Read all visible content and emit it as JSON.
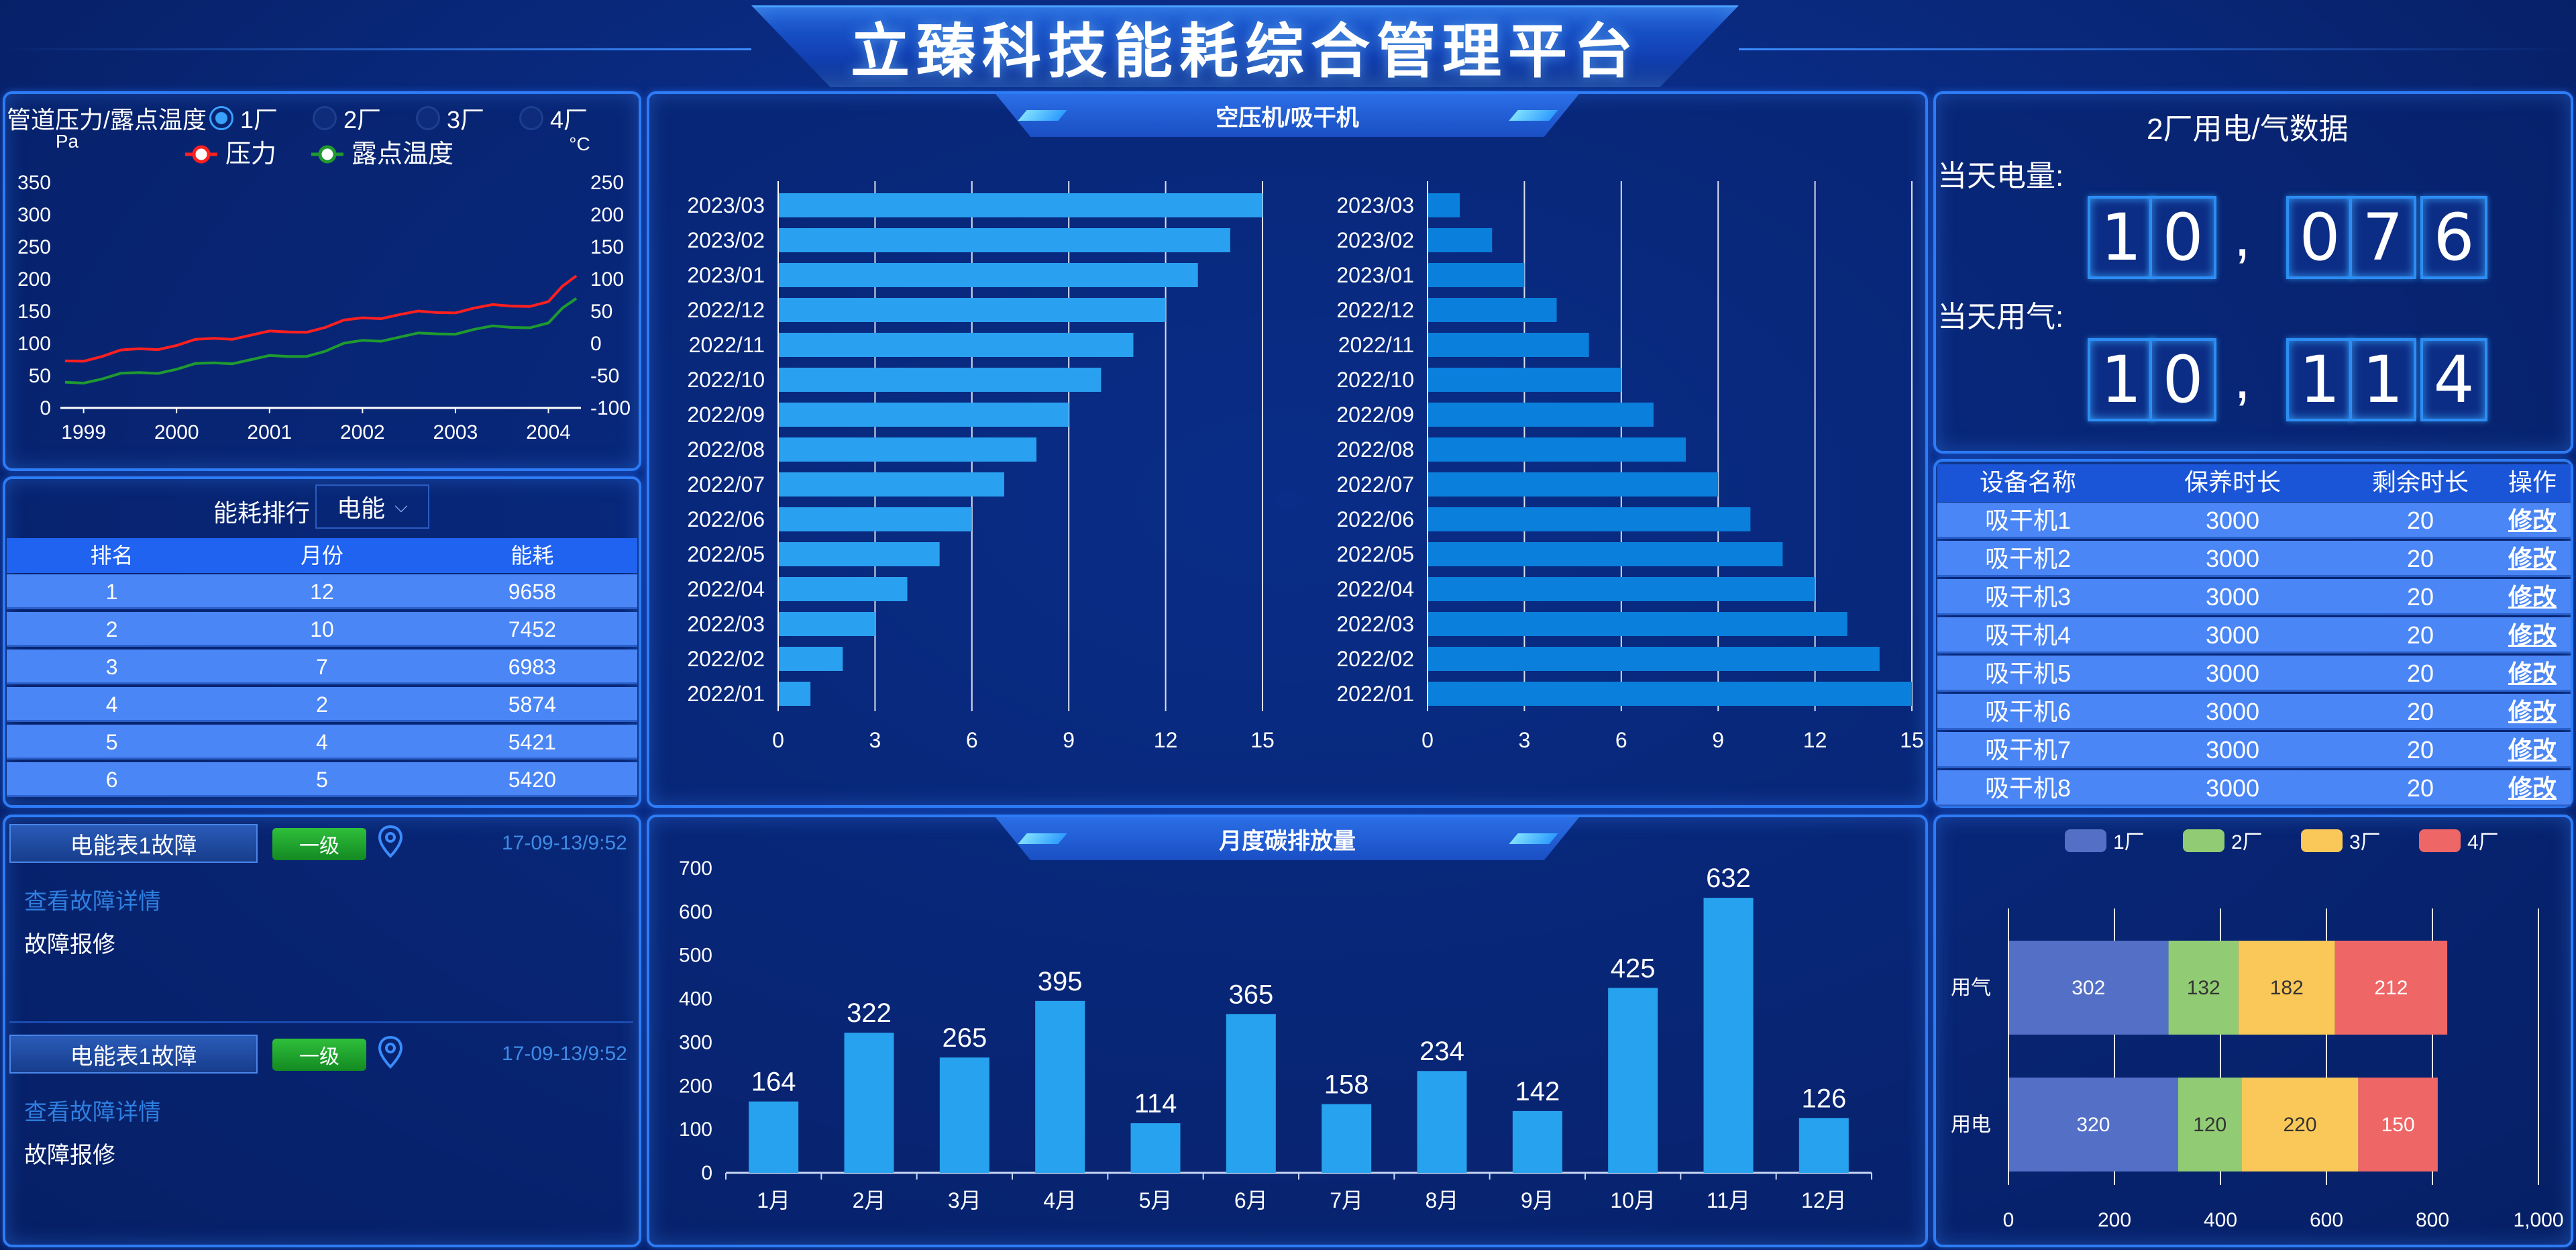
{
  "header": {
    "title": "立臻科技能耗综合管理平台"
  },
  "pressure_panel": {
    "title": "管道压力/露点温度",
    "factories": [
      "1厂",
      "2厂",
      "3厂",
      "4厂"
    ],
    "selected_factory": "1厂",
    "left_unit": "Pa",
    "right_unit": "°C",
    "legend": [
      "压力",
      "露点温度"
    ],
    "colors": {
      "pressure": "#ff2020",
      "dew": "#1f9a30"
    }
  },
  "ranking": {
    "label": "能耗排行",
    "select_value": "电能",
    "columns": [
      "排名",
      "月份",
      "能耗"
    ],
    "rows": [
      [
        "1",
        "12",
        "9658"
      ],
      [
        "2",
        "10",
        "7452"
      ],
      [
        "3",
        "7",
        "6983"
      ],
      [
        "4",
        "2",
        "5874"
      ],
      [
        "5",
        "4",
        "5421"
      ],
      [
        "6",
        "5",
        "5420"
      ]
    ]
  },
  "alarms": [
    {
      "name": "电能表1故障",
      "level": "一级",
      "time": "17-09-13/9:52",
      "detail_link": "查看故障详情",
      "repair": "故障报修"
    },
    {
      "name": "电能表1故障",
      "level": "一级",
      "time": "17-09-13/9:52",
      "detail_link": "查看故障详情",
      "repair": "故障报修"
    }
  ],
  "compressor_panel": {
    "title": "空压机/吸干机"
  },
  "carbon_panel": {
    "title": "月度碳排放量"
  },
  "usage_panel": {
    "title": "2厂用电/气数据",
    "power_label": "当天电量:",
    "gas_label": "当天用气:",
    "power_digits": [
      "1",
      "0",
      ",",
      "0",
      "7",
      "6"
    ],
    "gas_digits": [
      "1",
      "0",
      ",",
      "1",
      "1",
      "4"
    ]
  },
  "maintenance": {
    "columns": [
      "设备名称",
      "保养时长",
      "剩余时长",
      "操作"
    ],
    "rows": [
      [
        "吸干机1",
        "3000",
        "20",
        "修改"
      ],
      [
        "吸干机2",
        "3000",
        "20",
        "修改"
      ],
      [
        "吸干机3",
        "3000",
        "20",
        "修改"
      ],
      [
        "吸干机4",
        "3000",
        "20",
        "修改"
      ],
      [
        "吸干机5",
        "3000",
        "20",
        "修改"
      ],
      [
        "吸干机6",
        "3000",
        "20",
        "修改"
      ],
      [
        "吸干机7",
        "3000",
        "20",
        "修改"
      ],
      [
        "吸干机8",
        "3000",
        "20",
        "修改"
      ]
    ]
  },
  "chart_data": [
    {
      "type": "line",
      "title": "管道压力/露点温度",
      "x_ticks": [
        "1999",
        "2000",
        "2001",
        "2002",
        "2003",
        "2004"
      ],
      "left_axis": {
        "unit": "Pa",
        "ticks": [
          0,
          50,
          100,
          150,
          200,
          250,
          300,
          350
        ],
        "ylim": [
          0,
          350
        ]
      },
      "right_axis": {
        "unit": "°C",
        "ticks": [
          -100,
          -50,
          0,
          50,
          100,
          150,
          200,
          250
        ],
        "ylim": [
          -100,
          250
        ]
      },
      "series": [
        {
          "name": "压力",
          "axis": "left",
          "color": "#ff2020",
          "x": [
            1998.8,
            1999.2,
            1999.6,
            2000.0,
            2000.4,
            2000.8,
            2001.2,
            2001.6,
            2002.0,
            2002.4,
            2002.8,
            2003.2,
            2003.6,
            2004.0,
            2004.3
          ],
          "values": [
            73,
            80,
            92,
            97,
            108,
            113,
            118,
            125,
            140,
            145,
            148,
            155,
            158,
            165,
            205
          ]
        },
        {
          "name": "露点温度",
          "axis": "right",
          "color": "#1f9a30",
          "x": [
            1998.8,
            1999.2,
            1999.6,
            2000.0,
            2000.4,
            2000.8,
            2001.2,
            2001.6,
            2002.0,
            2002.4,
            2002.8,
            2003.2,
            2003.6,
            2004.0,
            2004.3
          ],
          "values": [
            -60,
            -55,
            -45,
            -40,
            -30,
            -25,
            -20,
            -12,
            5,
            10,
            15,
            22,
            25,
            32,
            70
          ]
        }
      ]
    },
    {
      "type": "bar",
      "orientation": "horizontal",
      "categories": [
        "2023/03",
        "2023/02",
        "2023/01",
        "2022/12",
        "2022/11",
        "2022/10",
        "2022/09",
        "2022/08",
        "2022/07",
        "2022/06",
        "2022/05",
        "2022/04",
        "2022/03",
        "2022/02",
        "2022/01"
      ],
      "values": [
        15,
        14,
        13,
        12,
        11,
        10,
        9,
        8,
        7,
        6,
        5,
        4,
        3,
        2,
        1
      ],
      "xlim": [
        0,
        15
      ],
      "ticks": [
        0,
        3,
        6,
        9,
        12,
        15
      ],
      "color": "#2aa0f0"
    },
    {
      "type": "bar",
      "orientation": "horizontal",
      "categories": [
        "2023/03",
        "2023/02",
        "2023/01",
        "2022/12",
        "2022/11",
        "2022/10",
        "2022/09",
        "2022/08",
        "2022/07",
        "2022/06",
        "2022/05",
        "2022/04",
        "2022/03",
        "2022/02",
        "2022/01"
      ],
      "values": [
        1,
        2,
        3,
        4,
        5,
        6,
        7,
        8,
        9,
        10,
        11,
        12,
        13,
        14,
        15
      ],
      "xlim": [
        0,
        15
      ],
      "ticks": [
        0,
        3,
        6,
        9,
        12,
        15
      ],
      "color": "#0a7fdb"
    },
    {
      "type": "bar",
      "title": "月度碳排放量",
      "categories": [
        "1月",
        "2月",
        "3月",
        "4月",
        "5月",
        "6月",
        "7月",
        "8月",
        "9月",
        "10月",
        "11月",
        "12月"
      ],
      "values": [
        164,
        322,
        265,
        395,
        114,
        365,
        158,
        234,
        142,
        425,
        632,
        126
      ],
      "ylim": [
        0,
        700
      ],
      "ticks": [
        0,
        100,
        200,
        300,
        400,
        500,
        600,
        700
      ],
      "color": "#27a2ee"
    },
    {
      "type": "bar",
      "orientation": "horizontal",
      "stacked": true,
      "categories": [
        "用气",
        "用电"
      ],
      "series": [
        {
          "name": "1厂",
          "values": [
            302,
            320
          ],
          "color": "#5470c6"
        },
        {
          "name": "2厂",
          "values": [
            132,
            120
          ],
          "color": "#91cc75"
        },
        {
          "name": "3厂",
          "values": [
            182,
            220
          ],
          "color": "#fac858"
        },
        {
          "name": "4厂",
          "values": [
            212,
            150
          ],
          "color": "#ee6666"
        }
      ],
      "xlim": [
        0,
        1000
      ],
      "ticks": [
        "0",
        "200",
        "400",
        "600",
        "800",
        "1,000"
      ]
    }
  ]
}
